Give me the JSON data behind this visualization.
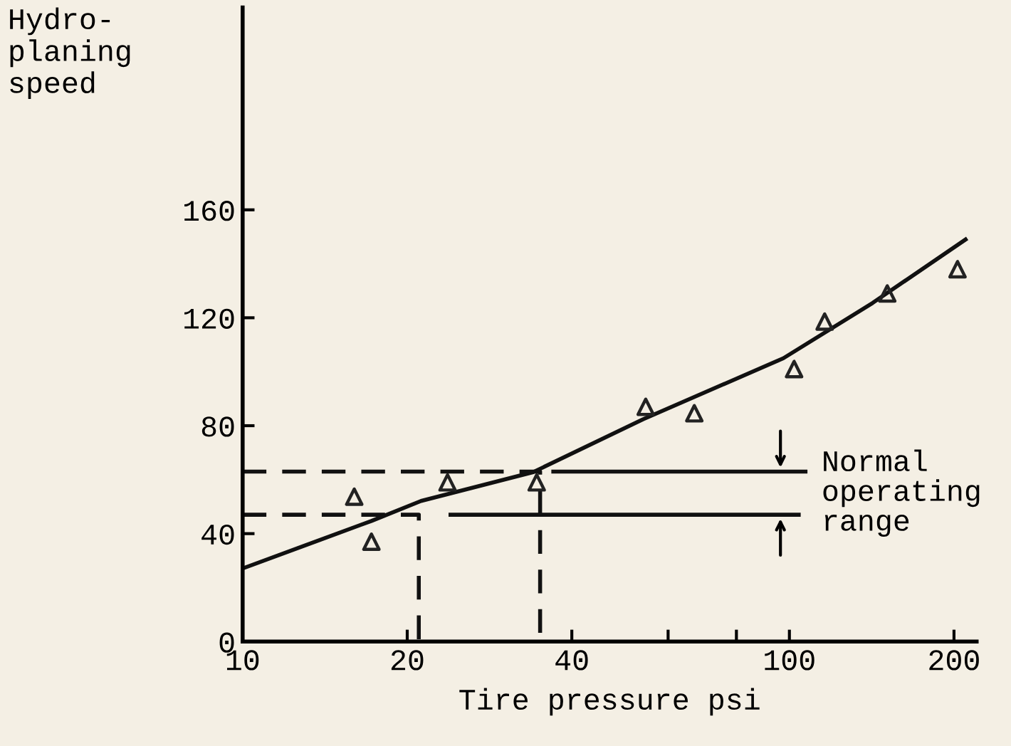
{
  "chart_data": {
    "type": "scatter",
    "xlabel": "Tire pressure psi",
    "ylabel": "Hydro-\nplaning\nspeed",
    "log": "x",
    "xlim": [
      10,
      220
    ],
    "ylim": [
      0,
      235
    ],
    "xticks": [
      10,
      20,
      40,
      {
        "value": 60,
        "label": null
      },
      {
        "value": 80,
        "label": null
      },
      100,
      200
    ],
    "yticks": [
      0,
      40,
      80,
      120,
      160
    ],
    "grid": false,
    "legend": false,
    "marker": "triangle",
    "color": "#222222",
    "x": [
      16.0,
      17.2,
      23.7,
      34.5,
      54.6,
      67,
      102,
      116,
      151,
      203
    ],
    "values": [
      53.7,
      37,
      59,
      59,
      87,
      84.6,
      101,
      118.6,
      129,
      138
    ],
    "series": [
      {
        "type": "line",
        "marker": "none",
        "color": "#111111",
        "line_style": "solid",
        "x": [
          10,
          17.2,
          21.2,
          34,
          54,
          97.5,
          142,
          210
        ],
        "values": [
          27.1,
          44.7,
          52.1,
          62.8,
          82.4,
          105,
          125.5,
          149
        ]
      },
      {
        "type": "line",
        "marker": "none",
        "color": "#111111",
        "line_style": "dashed",
        "x": [
          10,
          35,
          35
        ],
        "values": [
          63,
          63,
          0
        ]
      },
      {
        "type": "line",
        "marker": "none",
        "color": "#111111",
        "line_style": "dashed",
        "x": [
          10,
          21,
          21
        ],
        "values": [
          47,
          47,
          0
        ]
      },
      {
        "type": "line",
        "marker": "none",
        "color": "#111111",
        "line_style": "solid",
        "x": [
          37,
          107
        ],
        "values": [
          63,
          63
        ]
      },
      {
        "type": "line",
        "marker": "none",
        "color": "#111111",
        "line_style": "solid",
        "x": [
          24,
          104
        ],
        "values": [
          47,
          47
        ]
      }
    ],
    "annotations": [
      "Normal\noperating\nrange"
    ]
  }
}
